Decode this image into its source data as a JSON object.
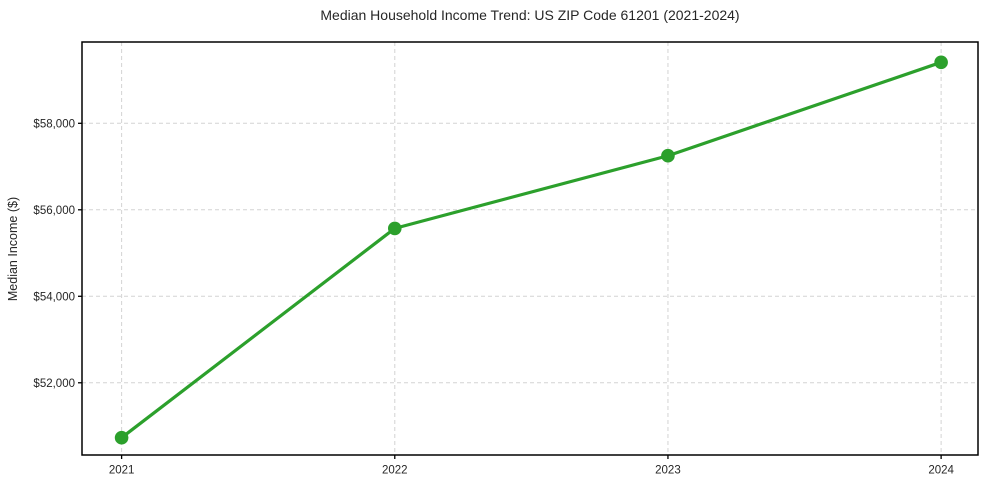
{
  "figure": {
    "background": "#ffffff"
  },
  "chart_data": {
    "type": "line",
    "title": "Median Household Income Trend: US ZIP Code 61201 (2021-2024)",
    "xlabel": "",
    "ylabel": "Median Income ($)",
    "x": [
      2021,
      2022,
      2023,
      2024
    ],
    "x_tick_labels": [
      "2021",
      "2022",
      "2023",
      "2024"
    ],
    "values": [
      50730,
      55570,
      57250,
      59410
    ],
    "y_ticks": [
      52000,
      54000,
      56000,
      58000
    ],
    "y_tick_labels": [
      "$52,000",
      "$54,000",
      "$56,000",
      "$58,000"
    ],
    "xlim": [
      2020.855,
      2024.135
    ],
    "ylim": [
      50330,
      59880
    ],
    "grid": true,
    "grid_dashed": true,
    "legend": "none",
    "line_color": "#2ca02c",
    "marker_color": "#2ca02c",
    "grid_color": "#d3d3d3",
    "axis_color": "#000000",
    "text_color": "#262626"
  }
}
